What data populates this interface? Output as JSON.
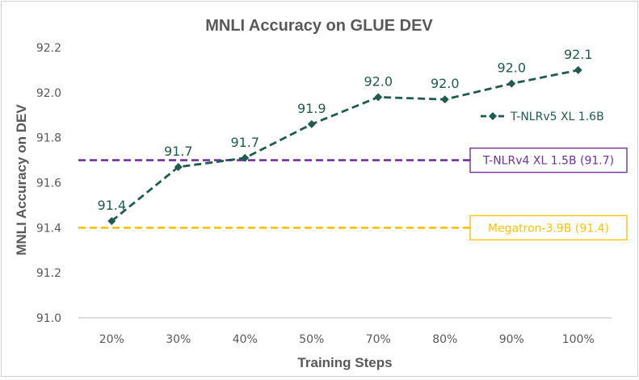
{
  "chart_data": {
    "type": "line",
    "title": "MNLI Accuracy on GLUE DEV",
    "xlabel": "Training Steps",
    "ylabel": "MNLI Accuracy on DEV",
    "categories": [
      "20%",
      "30%",
      "40%",
      "50%",
      "70%",
      "80%",
      "90%",
      "100%"
    ],
    "ylim": [
      91.0,
      92.2
    ],
    "yticks": [
      "91.0",
      "91.2",
      "91.4",
      "91.6",
      "91.8",
      "92.0",
      "92.2"
    ],
    "grid": false,
    "legend_position": "right",
    "series": [
      {
        "name": "T-NLRv5 XL 1.6B",
        "values": [
          91.43,
          91.67,
          91.71,
          91.86,
          91.98,
          91.97,
          92.04,
          92.1
        ],
        "data_labels": [
          "91.4",
          "91.7",
          "91.7",
          "91.9",
          "92.0",
          "92.0",
          "92.0",
          "92.1"
        ],
        "color": "#1f5b4e",
        "style": "dashed",
        "marker": "diamond"
      }
    ],
    "reference_lines": [
      {
        "label": "T-NLRv4 XL 1.5B (91.7)",
        "value": 91.7,
        "color": "#7030a0"
      },
      {
        "label": "Megatron-3.9B (91.4)",
        "value": 91.4,
        "color": "#ffc000"
      }
    ],
    "colors": {
      "axis": "#c8c8c8",
      "text": "#595959"
    }
  }
}
